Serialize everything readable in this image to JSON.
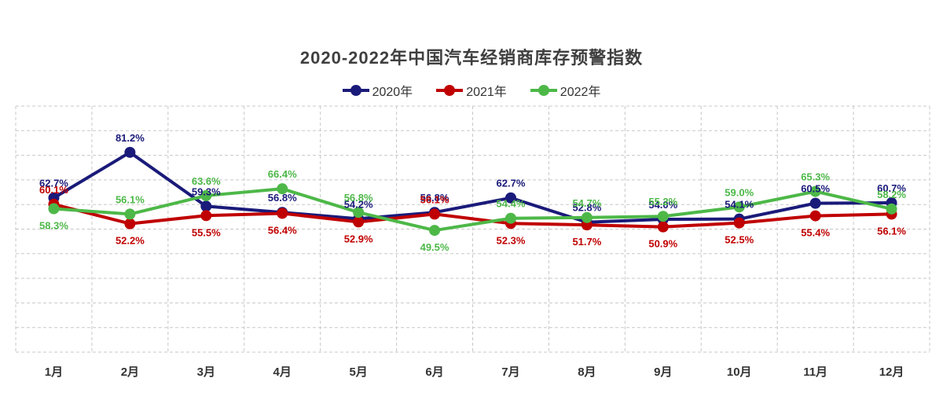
{
  "chart_data": {
    "type": "line",
    "title": "2020-2022年中国汽车经销商库存预警指数",
    "categories": [
      "1月",
      "2月",
      "3月",
      "4月",
      "5月",
      "6月",
      "7月",
      "8月",
      "9月",
      "10月",
      "11月",
      "12月"
    ],
    "series": [
      {
        "name": "2020年",
        "color": "#1a1a7a",
        "values": [
          62.7,
          81.2,
          59.3,
          56.8,
          54.2,
          56.8,
          62.7,
          52.8,
          54.0,
          54.1,
          60.5,
          60.7
        ],
        "labels": [
          "62.7%",
          "81.2%",
          "59.3%",
          "56.8%",
          "54.2%",
          "56.8%",
          "62.7%",
          "52.8%",
          "54.0%",
          "54.1%",
          "60.5%",
          "60.7%"
        ]
      },
      {
        "name": "2021年",
        "color": "#c00000",
        "values": [
          60.1,
          52.2,
          55.5,
          56.4,
          52.9,
          56.1,
          52.3,
          51.7,
          50.9,
          52.5,
          55.4,
          56.1
        ],
        "labels": [
          "60.1%",
          "52.2%",
          "55.5%",
          "56.4%",
          "52.9%",
          "56.1%",
          "52.3%",
          "51.7%",
          "50.9%",
          "52.5%",
          "55.4%",
          "56.1%"
        ]
      },
      {
        "name": "2022年",
        "color": "#4db848",
        "values": [
          58.3,
          56.1,
          63.6,
          66.4,
          56.8,
          49.5,
          54.4,
          54.7,
          55.2,
          59.0,
          65.3,
          58.2
        ],
        "labels": [
          "58.3%",
          "56.1%",
          "63.6%",
          "66.4%",
          "56.8%",
          "49.5%",
          "54.4%",
          "54.7%",
          "55.2%",
          "59.0%",
          "65.3%",
          "58.2%"
        ]
      }
    ],
    "ylim": [
      0,
      100
    ],
    "grid": true,
    "legend": "top-center"
  }
}
